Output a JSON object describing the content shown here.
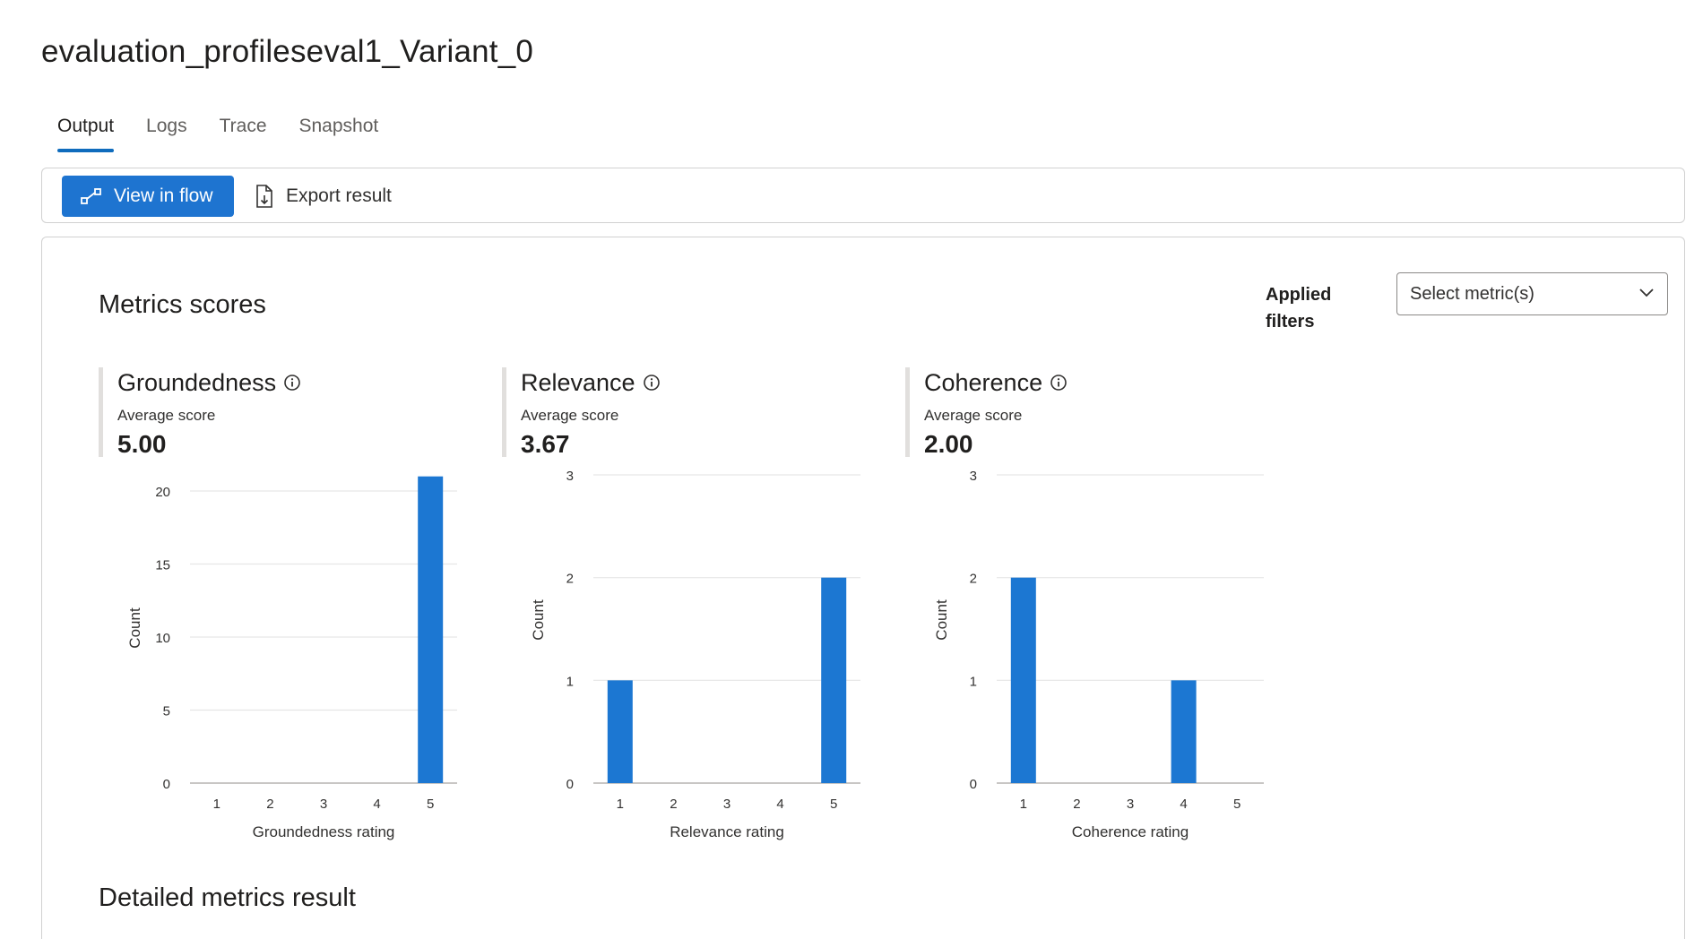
{
  "page": {
    "title": "evaluation_profileseval1_Variant_0"
  },
  "tabs": [
    "Output",
    "Logs",
    "Trace",
    "Snapshot"
  ],
  "toolbar": {
    "view_in_flow": "View in flow",
    "export_result": "Export result"
  },
  "metrics_section": {
    "title": "Metrics scores",
    "applied_filters": "Applied filters",
    "select_placeholder": "Select metric(s)"
  },
  "metrics": [
    {
      "name": "Groundedness",
      "sub": "Average score",
      "value": "5.00"
    },
    {
      "name": "Relevance",
      "sub": "Average score",
      "value": "3.67"
    },
    {
      "name": "Coherence",
      "sub": "Average score",
      "value": "2.00"
    }
  ],
  "detailed": {
    "title": "Detailed metrics result"
  },
  "colors": {
    "accent": "#1e74d0",
    "bar": "#1c77d2"
  },
  "chart_data": [
    {
      "type": "bar",
      "title": "Groundedness",
      "categories": [
        "1",
        "2",
        "3",
        "4",
        "5"
      ],
      "values": [
        0,
        0,
        0,
        0,
        21
      ],
      "xlabel": "Groundedness rating",
      "ylabel": "Count",
      "ylim": [
        0,
        20
      ],
      "yticks": [
        0,
        5,
        10,
        15,
        20
      ]
    },
    {
      "type": "bar",
      "title": "Relevance",
      "categories": [
        "1",
        "2",
        "3",
        "4",
        "5"
      ],
      "values": [
        1,
        0,
        0,
        0,
        2
      ],
      "xlabel": "Relevance rating",
      "ylabel": "Count",
      "ylim": [
        0,
        3
      ],
      "yticks": [
        0,
        1,
        2,
        3
      ]
    },
    {
      "type": "bar",
      "title": "Coherence",
      "categories": [
        "1",
        "2",
        "3",
        "4",
        "5"
      ],
      "values": [
        2,
        0,
        0,
        1,
        0
      ],
      "xlabel": "Coherence rating",
      "ylabel": "Count",
      "ylim": [
        0,
        3
      ],
      "yticks": [
        0,
        1,
        2,
        3
      ]
    }
  ]
}
